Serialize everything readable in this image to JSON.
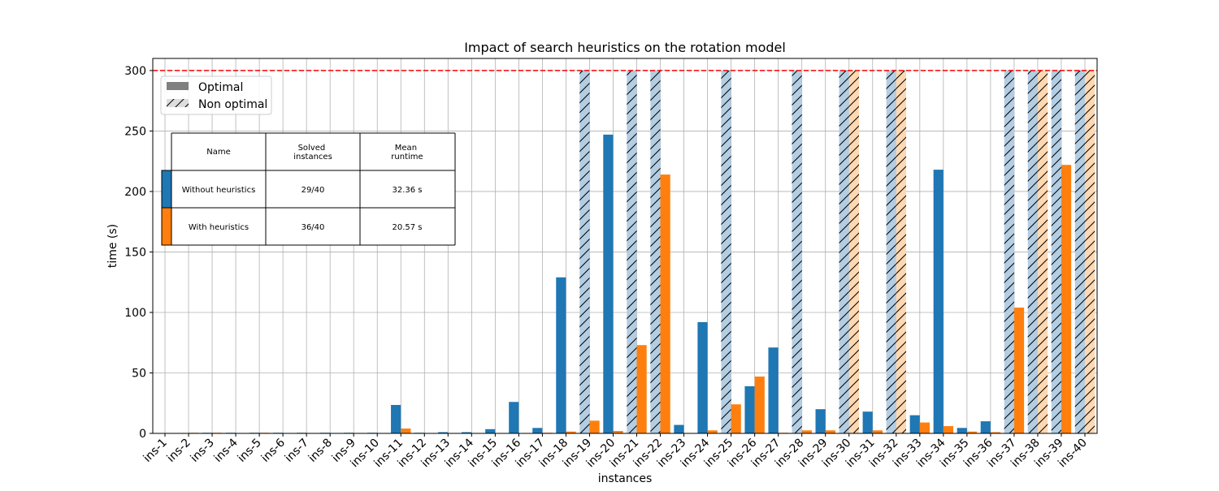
{
  "chart_data": {
    "type": "bar",
    "title": "Impact of search heuristics on the rotation model",
    "xlabel": "instances",
    "ylabel": "time (s)",
    "ylim": [
      0,
      310
    ],
    "yticks": [
      0,
      50,
      100,
      150,
      200,
      250,
      300
    ],
    "grid": true,
    "timeout": 300,
    "categories": [
      "ins-1",
      "ins-2",
      "ins-3",
      "ins-4",
      "ins-5",
      "ins-6",
      "ins-7",
      "ins-8",
      "ins-9",
      "ins-10",
      "ins-11",
      "ins-12",
      "ins-13",
      "ins-14",
      "ins-15",
      "ins-16",
      "ins-17",
      "ins-18",
      "ins-19",
      "ins-20",
      "ins-21",
      "ins-22",
      "ins-23",
      "ins-24",
      "ins-25",
      "ins-26",
      "ins-27",
      "ins-28",
      "ins-29",
      "ins-30",
      "ins-31",
      "ins-32",
      "ins-33",
      "ins-34",
      "ins-35",
      "ins-36",
      "ins-37",
      "ins-38",
      "ins-39",
      "ins-40"
    ],
    "series": [
      {
        "name": "Without heuristics",
        "color": "#1f77b4",
        "faded_color": "#b3cde3",
        "values": [
          0.1,
          0.3,
          0.5,
          0.5,
          0.5,
          0.5,
          0.5,
          0.5,
          0.5,
          0.5,
          23.5,
          0.5,
          1,
          1,
          3.5,
          26,
          4.5,
          129,
          300,
          247,
          300,
          300,
          7,
          92,
          300,
          39,
          71,
          300,
          20,
          300,
          18,
          300,
          15,
          218,
          4.5,
          10,
          300,
          300,
          300,
          300
        ],
        "optimal": [
          true,
          true,
          true,
          true,
          true,
          true,
          true,
          true,
          true,
          true,
          true,
          true,
          true,
          true,
          true,
          true,
          true,
          true,
          false,
          true,
          false,
          false,
          true,
          true,
          false,
          true,
          true,
          false,
          true,
          false,
          true,
          false,
          true,
          true,
          true,
          true,
          false,
          false,
          false,
          false
        ]
      },
      {
        "name": "With heuristics",
        "color": "#ff7f0e",
        "faded_color": "#ffd8b1",
        "values": [
          0.1,
          0.5,
          0.5,
          0.3,
          0.5,
          0.3,
          0.3,
          0.3,
          0.3,
          0.3,
          4,
          0.2,
          0.3,
          0.3,
          0.3,
          0.3,
          0.5,
          1.5,
          10.5,
          2,
          73,
          214,
          0.3,
          2.5,
          24,
          47,
          0.5,
          2.5,
          2.5,
          300,
          2.5,
          300,
          9,
          6,
          1.5,
          1,
          104,
          300,
          222,
          300
        ],
        "optimal": [
          true,
          true,
          true,
          true,
          true,
          true,
          true,
          true,
          true,
          true,
          true,
          true,
          true,
          true,
          true,
          true,
          true,
          true,
          true,
          true,
          true,
          true,
          true,
          true,
          true,
          true,
          true,
          true,
          true,
          false,
          true,
          false,
          true,
          true,
          true,
          true,
          true,
          false,
          true,
          false
        ]
      }
    ],
    "legend": {
      "placement": "top-left",
      "entries": [
        "Optimal",
        "Non optimal"
      ]
    },
    "summary_table": {
      "headers": [
        "Name",
        "Solved\ninstances",
        "Mean\nruntime"
      ],
      "rows": [
        {
          "name": "Without heuristics",
          "solved": "29/40",
          "runtime": "32.36 s"
        },
        {
          "name": "With heuristics",
          "solved": "36/40",
          "runtime": "20.57 s"
        }
      ]
    }
  }
}
